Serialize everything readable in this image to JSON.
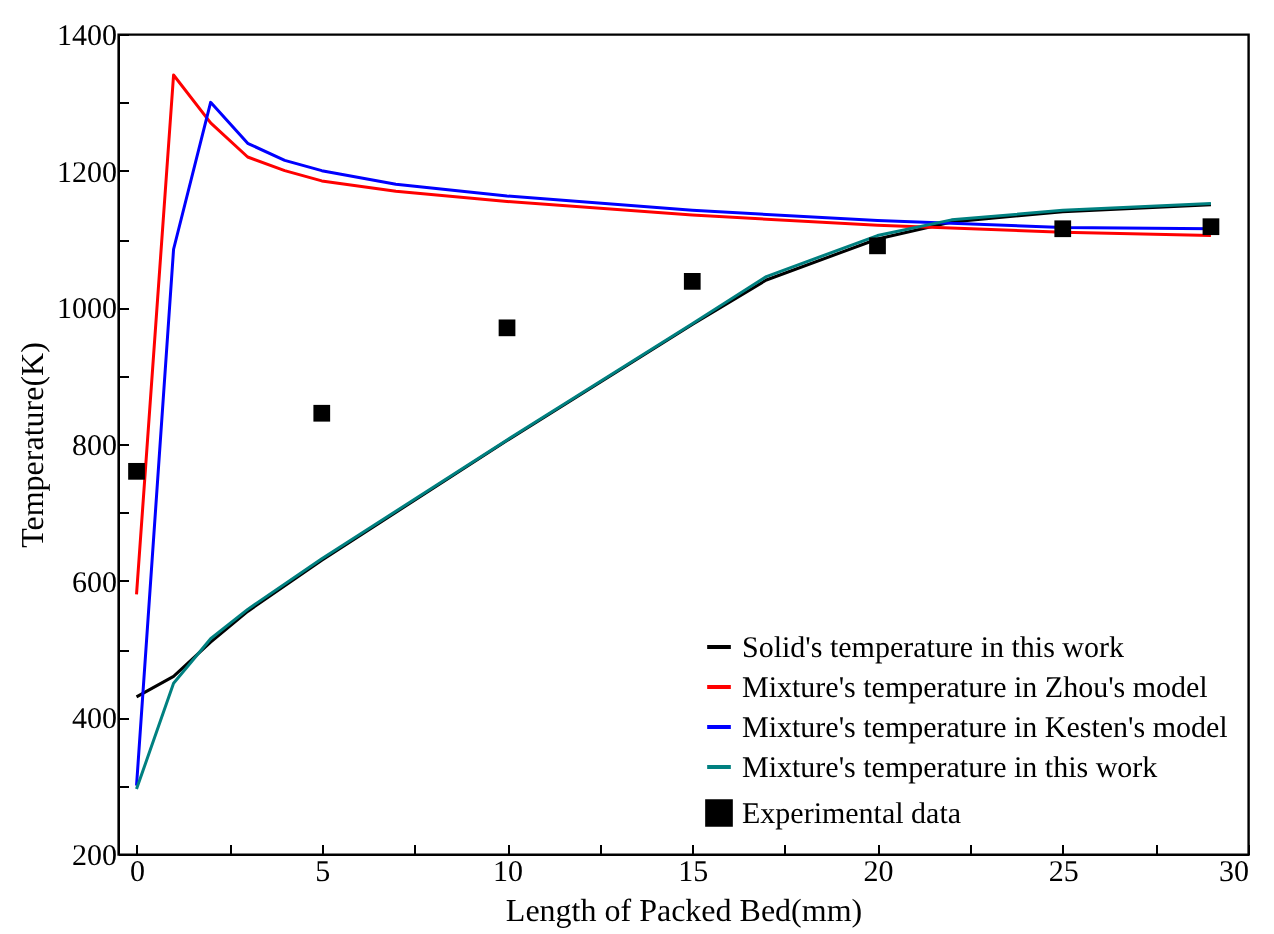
{
  "chart_data": {
    "type": "line",
    "xlabel": "Length of Packed Bed(mm)",
    "ylabel": "Temperature(K)",
    "xlim": [
      -0.5,
      30
    ],
    "xticks": [
      0,
      {
        "value": 2.5,
        "label": null
      },
      5,
      {
        "value": 7.5,
        "label": null
      },
      10,
      {
        "value": 12.5,
        "label": null
      },
      15,
      {
        "value": 17.5,
        "label": null
      },
      20,
      {
        "value": 22.5,
        "label": null
      },
      25,
      {
        "value": 27.5,
        "label": null
      },
      30
    ],
    "ylim": [
      200,
      1400
    ],
    "yticks": [
      200,
      {
        "value": 300,
        "label": null
      },
      400,
      {
        "value": 500,
        "label": null
      },
      600,
      {
        "value": 700,
        "label": null
      },
      800,
      {
        "value": 900,
        "label": null
      },
      1000,
      {
        "value": 1100,
        "label": null
      },
      1200,
      {
        "value": 1300,
        "label": null
      },
      1400
    ],
    "grid": false,
    "legend": "bottom right",
    "series": [
      {
        "name": "Solid's temperature in this work",
        "color": "#000000",
        "x": [
          0,
          1,
          2,
          3,
          5,
          10,
          15,
          17,
          20,
          22,
          25,
          29
        ],
        "values": [
          430,
          460,
          510,
          555,
          630,
          805,
          975,
          1040,
          1100,
          1125,
          1140,
          1150
        ]
      },
      {
        "name": "Mixture's temperature in Zhou's model",
        "color": "#ff0000",
        "x": [
          0,
          1,
          2,
          3,
          4,
          5,
          7,
          10,
          15,
          20,
          25,
          29
        ],
        "values": [
          580,
          1340,
          1270,
          1220,
          1200,
          1185,
          1170,
          1155,
          1135,
          1120,
          1110,
          1105
        ]
      },
      {
        "name": "Mixture's temperature in Kesten's model",
        "color": "#0000ff",
        "x": [
          0,
          1,
          2,
          3,
          4,
          5,
          7,
          10,
          15,
          20,
          25,
          29
        ],
        "values": [
          300,
          1085,
          1300,
          1240,
          1215,
          1200,
          1180,
          1163,
          1142,
          1127,
          1117,
          1115
        ]
      },
      {
        "name": "Mixture's temperature in this work",
        "color": "#008080",
        "x": [
          0,
          1,
          2,
          3,
          5,
          10,
          15,
          17,
          20,
          22,
          25,
          29
        ],
        "values": [
          295,
          450,
          515,
          558,
          632,
          806,
          976,
          1045,
          1105,
          1128,
          1142,
          1152
        ]
      },
      {
        "name": "Experimental data",
        "type": "scatter",
        "marker": "square",
        "color": "#000000",
        "x": [
          0,
          5,
          10,
          15,
          20,
          25,
          29
        ],
        "values": [
          760,
          845,
          970,
          1038,
          1090,
          1115,
          1118
        ]
      }
    ]
  }
}
